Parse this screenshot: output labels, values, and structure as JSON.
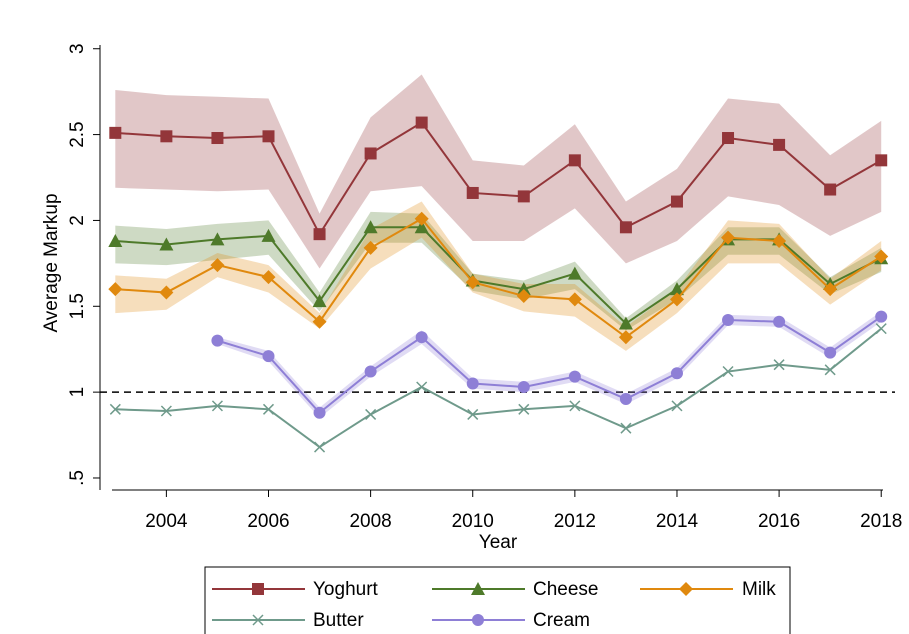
{
  "chart_data": {
    "type": "line",
    "x_label": "Year",
    "y_label": "Average Markup",
    "x": [
      2003,
      2004,
      2005,
      2006,
      2007,
      2008,
      2009,
      2010,
      2011,
      2012,
      2013,
      2014,
      2015,
      2016,
      2017,
      2018
    ],
    "xlim": [
      2002.7,
      2018.27
    ],
    "xticks": [
      2004,
      2006,
      2008,
      2010,
      2012,
      2014,
      2016,
      2018
    ],
    "ylim": [
      0.43,
      3.08
    ],
    "yticks": [
      {
        "value": 0.5,
        "label": ".5"
      },
      1,
      1.5,
      2,
      2.5,
      3
    ],
    "reference_line": 1,
    "series": [
      {
        "name": "Yoghurt",
        "color": "#93363a",
        "marker": "square",
        "values": [
          2.51,
          2.49,
          2.48,
          2.49,
          1.92,
          2.39,
          2.57,
          2.16,
          2.14,
          2.35,
          1.96,
          2.11,
          2.48,
          2.44,
          2.18,
          2.35
        ],
        "upper": [
          2.76,
          2.73,
          2.72,
          2.71,
          2.04,
          2.6,
          2.85,
          2.35,
          2.32,
          2.56,
          2.11,
          2.3,
          2.71,
          2.68,
          2.38,
          2.58
        ],
        "lower": [
          2.19,
          2.18,
          2.17,
          2.18,
          1.72,
          2.17,
          2.2,
          1.88,
          1.88,
          2.07,
          1.75,
          1.88,
          2.14,
          2.09,
          1.91,
          2.05
        ]
      },
      {
        "name": "Cheese",
        "color": "#4e7a2a",
        "marker": "triangle",
        "values": [
          1.88,
          1.86,
          1.89,
          1.91,
          1.53,
          1.96,
          1.96,
          1.65,
          1.6,
          1.69,
          1.4,
          1.6,
          1.89,
          1.89,
          1.63,
          1.78
        ],
        "upper": [
          1.97,
          1.95,
          1.98,
          2.0,
          1.58,
          2.05,
          2.04,
          1.69,
          1.65,
          1.76,
          1.43,
          1.65,
          1.96,
          1.96,
          1.67,
          1.84
        ],
        "lower": [
          1.75,
          1.74,
          1.77,
          1.8,
          1.47,
          1.87,
          1.87,
          1.59,
          1.54,
          1.6,
          1.36,
          1.54,
          1.8,
          1.8,
          1.57,
          1.7
        ]
      },
      {
        "name": "Milk",
        "color": "#e0890e",
        "marker": "diamond",
        "values": [
          1.6,
          1.58,
          1.74,
          1.67,
          1.41,
          1.84,
          2.01,
          1.64,
          1.56,
          1.54,
          1.32,
          1.54,
          1.9,
          1.88,
          1.6,
          1.79
        ],
        "upper": [
          1.68,
          1.66,
          1.81,
          1.74,
          1.46,
          1.95,
          2.11,
          1.69,
          1.63,
          1.63,
          1.38,
          1.6,
          2.0,
          1.98,
          1.66,
          1.88
        ],
        "lower": [
          1.46,
          1.48,
          1.67,
          1.58,
          1.37,
          1.72,
          1.9,
          1.58,
          1.47,
          1.44,
          1.24,
          1.46,
          1.75,
          1.75,
          1.51,
          1.71
        ]
      },
      {
        "name": "Butter",
        "color": "#6f9a8b",
        "marker": "x",
        "values": [
          0.9,
          0.89,
          0.92,
          0.9,
          0.68,
          0.87,
          1.03,
          0.87,
          0.9,
          0.92,
          0.79,
          0.92,
          1.12,
          1.16,
          1.13,
          1.37
        ]
      },
      {
        "name": "Cream",
        "color": "#8e7fd6",
        "marker": "circle",
        "values": [
          null,
          null,
          1.3,
          1.21,
          0.88,
          1.12,
          1.32,
          1.05,
          1.03,
          1.09,
          0.96,
          1.11,
          1.42,
          1.41,
          1.23,
          1.44
        ],
        "upper": [
          null,
          null,
          1.32,
          1.24,
          0.91,
          1.15,
          1.36,
          1.08,
          1.06,
          1.12,
          0.99,
          1.14,
          1.45,
          1.44,
          1.26,
          1.47
        ],
        "lower": [
          null,
          null,
          1.28,
          1.18,
          0.85,
          1.09,
          1.28,
          1.02,
          1.0,
          1.06,
          0.93,
          1.08,
          1.39,
          1.38,
          1.2,
          1.41
        ]
      }
    ]
  }
}
